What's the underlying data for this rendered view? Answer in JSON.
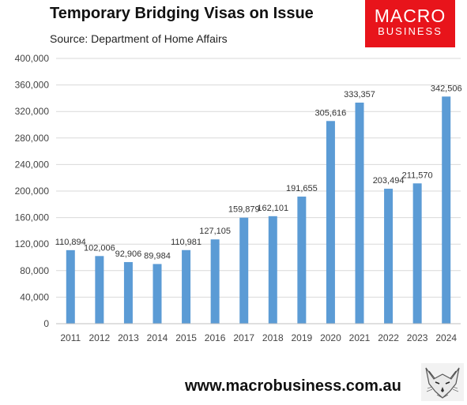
{
  "header": {
    "title": "Temporary Bridging Visas on Issue",
    "subtitle": "Source: Department of Home Affairs"
  },
  "logo": {
    "line1": "MACRO",
    "line2": "BUSINESS",
    "color": "#e8141b"
  },
  "footer": {
    "url": "www.macrobusiness.com.au",
    "mascot_icon": "fox-sketch-icon"
  },
  "chart_data": {
    "type": "bar",
    "categories": [
      "2011",
      "2012",
      "2013",
      "2014",
      "2015",
      "2016",
      "2017",
      "2018",
      "2019",
      "2020",
      "2021",
      "2022",
      "2023",
      "2024"
    ],
    "values": [
      110894,
      102006,
      92906,
      89984,
      110981,
      127105,
      159879,
      162101,
      191655,
      305616,
      333357,
      203494,
      211570,
      342506
    ],
    "data_labels": [
      "110,894",
      "102,006",
      "92,906",
      "89,984",
      "110,981",
      "127,105",
      "159,879",
      "162,101",
      "191,655",
      "305,616",
      "333,357",
      "203,494",
      "211,570",
      "342,506"
    ],
    "yticks": [
      "0",
      "40,000",
      "80,000",
      "120,000",
      "160,000",
      "200,000",
      "240,000",
      "280,000",
      "320,000",
      "360,000",
      "400,000"
    ],
    "ylim": [
      0,
      400000
    ],
    "grid": true,
    "bar_color": "#5b9bd5",
    "grid_color": "#d9d9d9",
    "legend": "none"
  }
}
